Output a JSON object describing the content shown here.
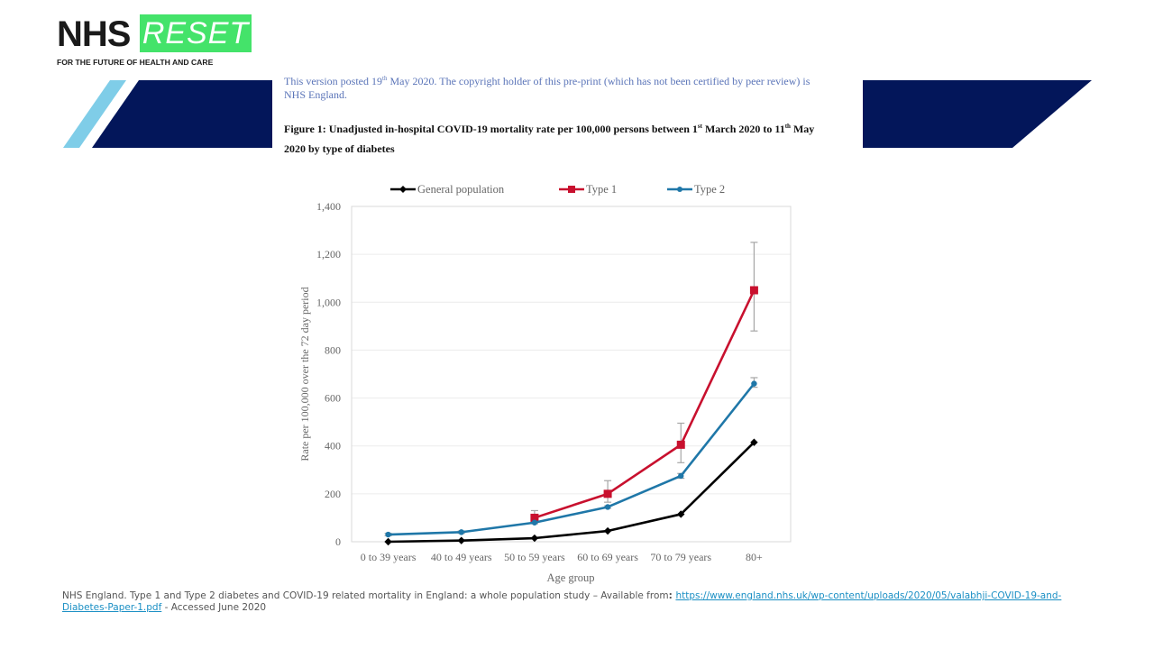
{
  "logo": {
    "brand": "NHS",
    "badge": "RESET",
    "tagline": "FOR THE FUTURE OF HEALTH AND CARE",
    "badge_color": "#44e36a"
  },
  "banner": {
    "navy_color": "#03165a",
    "light_blue_color": "#7fcde8"
  },
  "preprint_notice": {
    "part1": "This version posted 19",
    "sup": "th",
    "part2": " May 2020. The copyright holder of this pre-print (which has not been certified by peer review) is NHS England.",
    "color": "#5a74b8"
  },
  "figure_title": {
    "part1": "Figure 1: Unadjusted in-hospital COVID-19 mortality rate per 100,000 persons between 1",
    "sup1": "st",
    "part2": " March 2020 to 11",
    "sup2": "th",
    "part3": " May 2020 by type of diabetes"
  },
  "chart_data": {
    "type": "line",
    "title": "Unadjusted in-hospital COVID-19 mortality rate per 100,000 persons between 1st March 2020 to 11th May 2020 by type of diabetes",
    "xlabel": "Age group",
    "ylabel": "Rate per 100,000 over the 72 day period",
    "categories": [
      "0 to 39 years",
      "40 to 49 years",
      "50 to 59 years",
      "60 to 69 years",
      "70 to 79 years",
      "80+"
    ],
    "ylim": [
      0,
      1400
    ],
    "yticks": [
      0,
      200,
      400,
      600,
      800,
      1000,
      1200,
      1400
    ],
    "ytick_labels": [
      "0",
      "200",
      "400",
      "600",
      "800",
      "1,000",
      "1,200",
      "1,400"
    ],
    "grid": true,
    "legend_position": "top",
    "series": [
      {
        "name": "General population",
        "color": "#000000",
        "marker": "diamond",
        "values": [
          0,
          5,
          15,
          45,
          115,
          415
        ]
      },
      {
        "name": "Type 1",
        "color": "#c8102e",
        "marker": "square",
        "values": [
          null,
          null,
          100,
          200,
          405,
          1050
        ],
        "error_low": [
          null,
          null,
          80,
          165,
          330,
          880
        ],
        "error_high": [
          null,
          null,
          130,
          255,
          495,
          1250
        ]
      },
      {
        "name": "Type 2",
        "color": "#1f77a8",
        "marker": "circle",
        "values": [
          30,
          40,
          80,
          145,
          275,
          660
        ],
        "error_low": [
          25,
          35,
          75,
          140,
          265,
          645
        ],
        "error_high": [
          35,
          45,
          85,
          150,
          285,
          685
        ]
      }
    ]
  },
  "citation": {
    "text": "NHS England. Type 1 and Type 2 diabetes and COVID-19 related mortality in England: a whole population study – Available from",
    "colon": ": ",
    "link": "https://www.england.nhs.uk/wp-content/uploads/2020/05/valabhji-COVID-19-and-Diabetes-Paper-1.pdf",
    "suffix": " - Accessed June 2020"
  }
}
